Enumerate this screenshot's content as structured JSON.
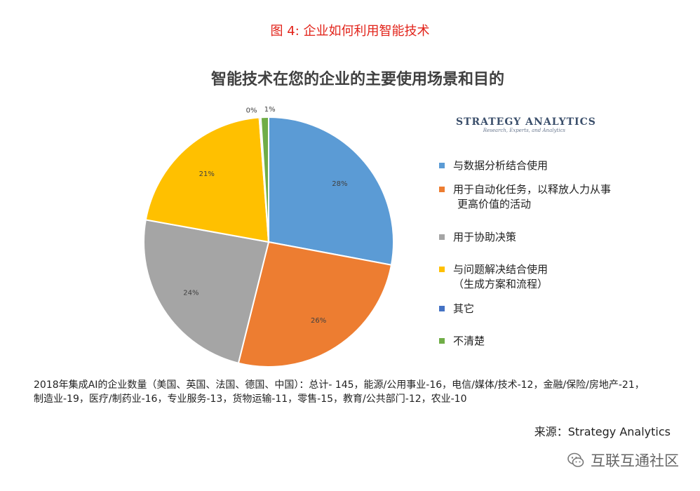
{
  "figure_caption": "图 4: 企业如何利用智能技术",
  "logo": {
    "name": "STRATEGY ANALYTICS",
    "tagline": "Research, Experts, and Analytics"
  },
  "chart_data": {
    "type": "pie",
    "title": "智能技术在您的企业的主要使用场景和目的",
    "legend_position": "right",
    "slices": [
      {
        "label_lines": [
          "与数据分析结合使用"
        ],
        "value": 28,
        "data_label": "28%",
        "color": "#5b9bd5"
      },
      {
        "label_lines": [
          "用于自动化任务，以释放人力从事",
          "更高价值的活动"
        ],
        "value": 26,
        "data_label": "26%",
        "color": "#ed7d31"
      },
      {
        "label_lines": [
          "用于协助决策"
        ],
        "value": 24,
        "data_label": "24%",
        "color": "#a5a5a5"
      },
      {
        "label_lines": [
          "与问题解决结合使用",
          "（生成方案和流程）"
        ],
        "value": 21,
        "data_label": "21%",
        "color": "#ffc000"
      },
      {
        "label_lines": [
          "其它"
        ],
        "value": 0.2,
        "data_label": "0%",
        "color": "#4472c4"
      },
      {
        "label_lines": [
          "不清楚"
        ],
        "value": 1,
        "data_label": "1%",
        "color": "#70ad47"
      }
    ]
  },
  "note": {
    "line1": "2018年集成AI的企业数量（美国、英国、法国、德国、中国）：总计- 145，能源/公用事业-16，电信/媒体/技术-12，金融/保险/房地产-21，",
    "line2": "制造业-19，医疗/制药业-16，专业服务-13，货物运输-11，零售-15，教育/公共部门-12，农业-10"
  },
  "source": "来源：Strategy Analytics",
  "watermark": "互联互通社区"
}
